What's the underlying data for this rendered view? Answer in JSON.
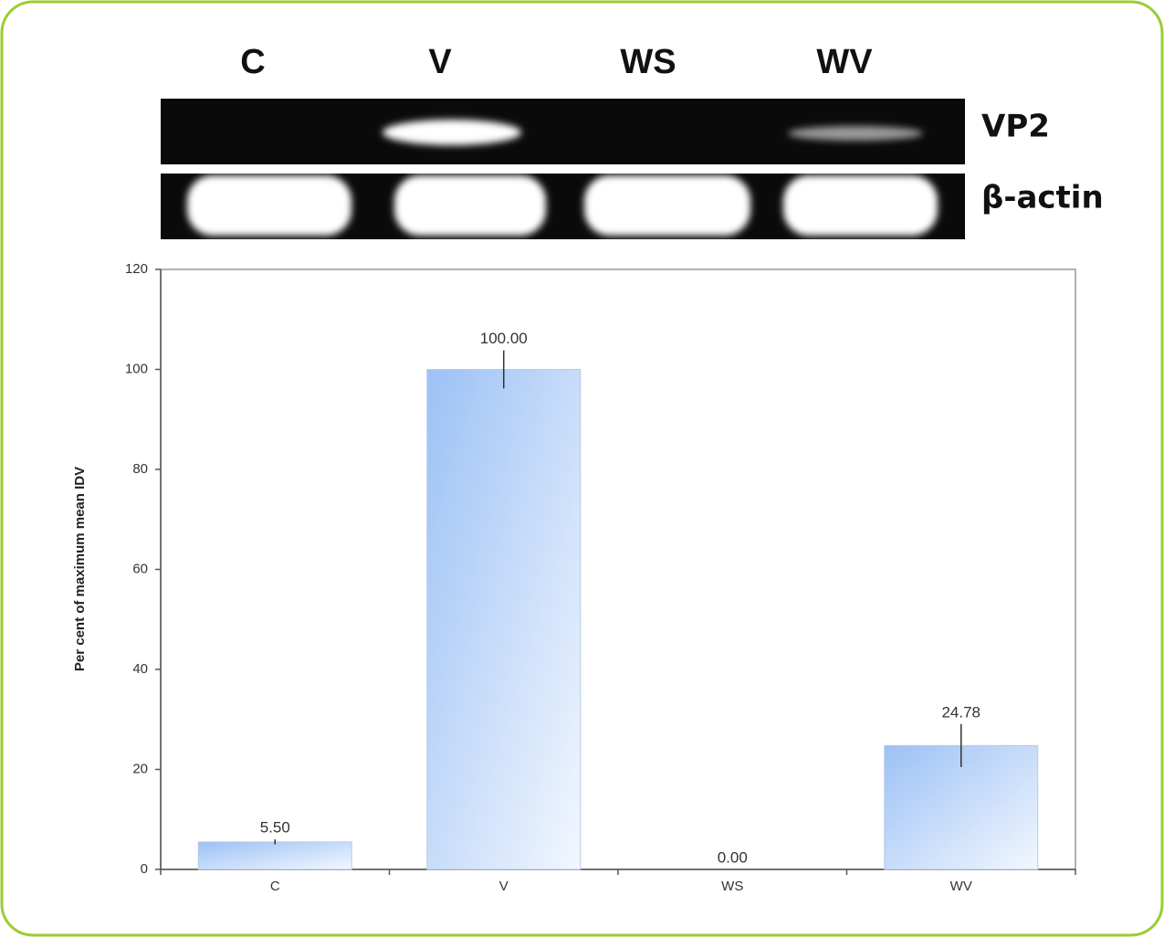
{
  "gel": {
    "lanes": [
      "C",
      "V",
      "WS",
      "WV"
    ],
    "bands": [
      "VP2",
      "β-actin"
    ]
  },
  "chart_data": {
    "type": "bar",
    "y_label": "Per cent of maximum mean IDV",
    "categories": [
      "C",
      "V",
      "WS",
      "WV"
    ],
    "values": [
      5.5,
      100,
      0,
      24.78
    ],
    "value_labels": [
      "5.50",
      "100.00",
      "0.00",
      "24.78"
    ],
    "errors": [
      0.5,
      3.8,
      0,
      4.3
    ],
    "color": "#9cc1f5",
    "ylim": [
      0,
      120
    ],
    "yticks": [
      0,
      20,
      40,
      60,
      80,
      100,
      120
    ]
  }
}
